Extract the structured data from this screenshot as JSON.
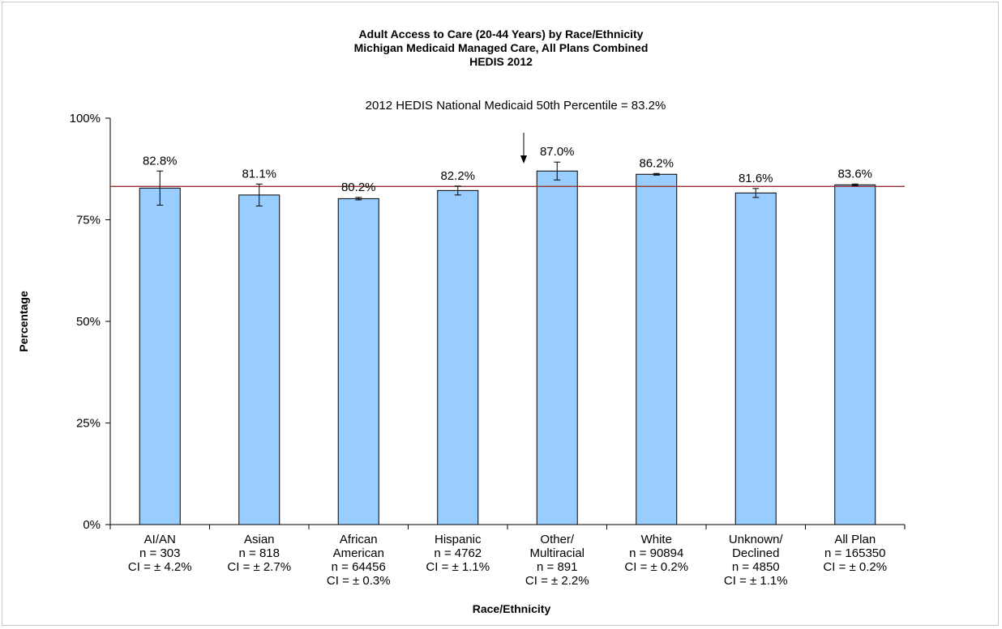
{
  "chart_data": {
    "type": "bar",
    "title": "Adult Access to Care (20-44 Years)  by Race/Ethnicity",
    "subtitle": "Michigan Medicaid Managed Care, All Plans Combined",
    "subtitle2": "HEDIS 2012",
    "xlabel": "Race/Ethnicity",
    "ylabel": "Percentage",
    "ylim": [
      0,
      100
    ],
    "yticks": [
      "0%",
      "25%",
      "50%",
      "75%",
      "100%"
    ],
    "categories": [
      [
        "AI/AN",
        "n = 303",
        "CI = ± 4.2%"
      ],
      [
        "Asian",
        "n = 818",
        "CI = ± 2.7%"
      ],
      [
        "African",
        "American",
        "n = 64456",
        "CI = ± 0.3%"
      ],
      [
        "Hispanic",
        "n = 4762",
        "CI = ± 1.1%"
      ],
      [
        "Other/",
        "Multiracial",
        "n = 891",
        "CI = ± 2.2%"
      ],
      [
        "White",
        "n = 90894",
        "CI = ± 0.2%"
      ],
      [
        "Unknown/",
        "Declined",
        "n = 4850",
        "CI = ± 1.1%"
      ],
      [
        "All Plan",
        "n = 165350",
        "CI = ± 0.2%"
      ]
    ],
    "values": [
      82.8,
      81.1,
      80.2,
      82.2,
      87.0,
      86.2,
      81.6,
      83.6
    ],
    "value_labels": [
      "82.8%",
      "81.1%",
      "80.2%",
      "82.2%",
      "87.0%",
      "86.2%",
      "81.6%",
      "83.6%"
    ],
    "ci": [
      4.2,
      2.7,
      0.3,
      1.1,
      2.2,
      0.2,
      1.1,
      0.2
    ],
    "benchmark": {
      "value": 83.2,
      "label": "2012 HEDIS National Medicaid 50th Percentile = 83.2%"
    },
    "colors": {
      "bar_fill": "#99ccff",
      "bar_stroke": "#000000",
      "benchmark_line": "#993333"
    },
    "grid": false,
    "legend": "none"
  }
}
